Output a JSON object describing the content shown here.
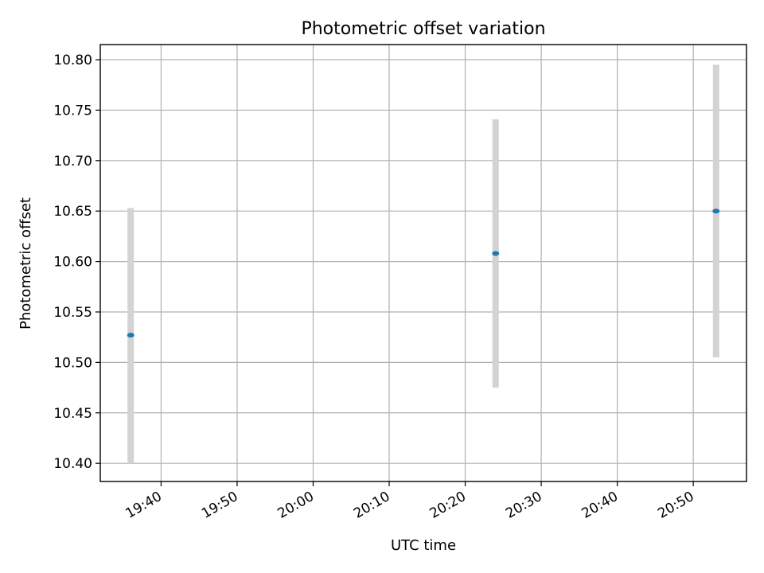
{
  "chart_data": {
    "type": "scatter",
    "title": "Photometric offset variation",
    "xlabel": "UTC time",
    "ylabel": "Photometric offset",
    "x_tick_labels": [
      "19:40",
      "19:50",
      "20:00",
      "20:10",
      "20:20",
      "20:30",
      "20:40",
      "20:50"
    ],
    "y_tick_labels": [
      "10.40",
      "10.45",
      "10.50",
      "10.55",
      "10.60",
      "10.65",
      "10.70",
      "10.75",
      "10.80"
    ],
    "xlim": [
      "19:32",
      "20:57"
    ],
    "ylim": [
      10.382,
      10.815
    ],
    "grid": true,
    "series": [
      {
        "points": [
          {
            "x": "19:36",
            "y": 10.527,
            "err_low": 10.4,
            "err_high": 10.653
          },
          {
            "x": "20:24",
            "y": 10.608,
            "err_low": 10.475,
            "err_high": 10.741
          },
          {
            "x": "20:53",
            "y": 10.65,
            "err_low": 10.505,
            "err_high": 10.795
          }
        ]
      }
    ],
    "colors": {
      "marker": "#1f77b4",
      "errorbar": "#d3d3d3",
      "grid": "#b0b0b0"
    }
  }
}
